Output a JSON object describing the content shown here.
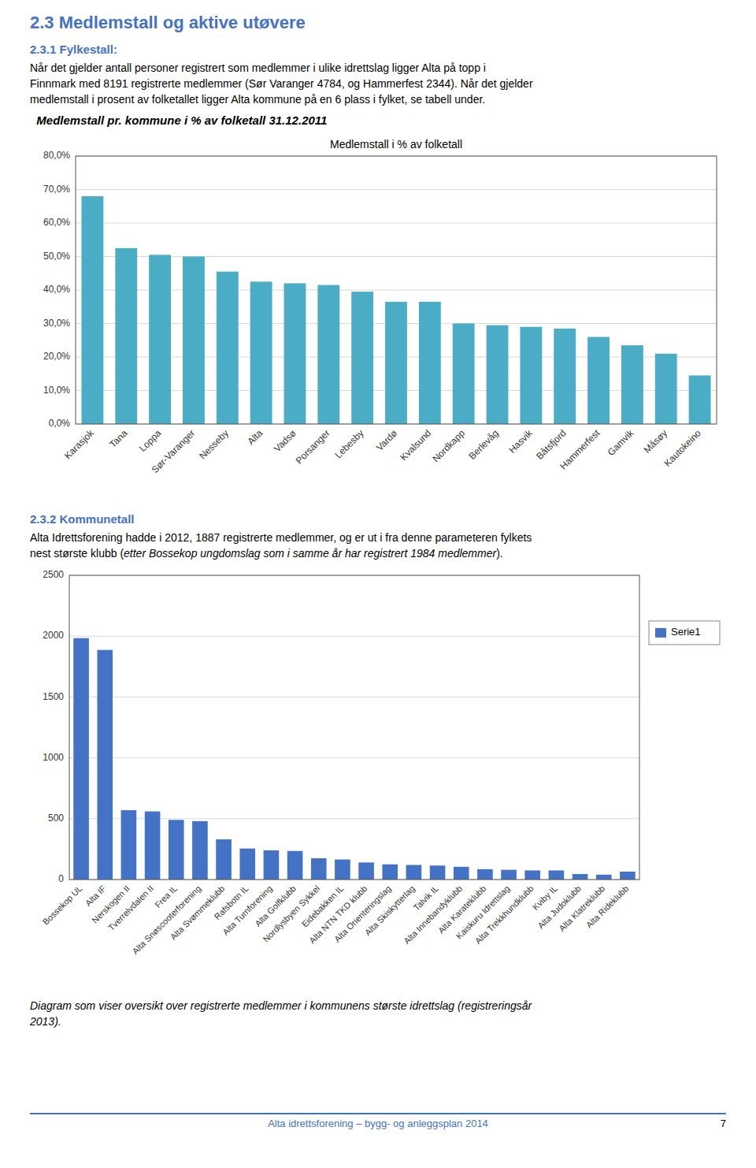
{
  "heading_color": "#4472C4",
  "title": "2.3 Medlemstall og aktive utøvere",
  "section1": {
    "heading": "2.3.1 Fylkestall:",
    "lines": [
      "Når det gjelder antall personer registrert som medlemmer i ulike idrettslag ligger Alta på topp i",
      "Finnmark med 8191 registrerte medlemmer (Sør Varanger 4784, og Hammerfest 2344).  Når det gjelder",
      "medlemstall i prosent av folketallet ligger Alta kommune på en 6 plass i fylket, se tabell under."
    ],
    "chart_heading": "  Medlemstall pr. kommune i % av folketall 31.12.2011"
  },
  "section2": {
    "heading": "2.3.2 Kommunetall",
    "line1": "Alta Idrettsforening hadde i 2012, 1887 registrerte medlemmer, og er ut i fra denne parameteren fylkets",
    "line2_parts": [
      "nest største klubb (",
      "etter Bossekop ungdomslag som i samme år har registrert 1984 medlemmer",
      ")."
    ]
  },
  "caption": [
    "Diagram som viser oversikt over registrerte medlemmer i kommunens største idrettslag (registreringsår",
    "2013)."
  ],
  "footer": "Alta idrettsforening – bygg- og anleggsplan 2014",
  "page_number": "7",
  "chart_data": [
    {
      "type": "bar",
      "title": "Medlemstall i % av folketall",
      "categories": [
        "Karasjok",
        "Tana",
        "Loppa",
        "Sør-Varanger",
        "Nesseby",
        "Alta",
        "Vadsø",
        "Porsanger",
        "Lebesby",
        "Vardø",
        "Kvalsund",
        "Nordkapp",
        "Berlevåg",
        "Hasvik",
        "Båtsfjord",
        "Hammerfest",
        "Gamvik",
        "Måsøy",
        "Kautokeino"
      ],
      "values": [
        68.0,
        52.5,
        50.5,
        50.0,
        45.5,
        42.5,
        42.0,
        41.5,
        39.5,
        36.5,
        36.5,
        30.0,
        29.5,
        29.0,
        28.5,
        26.0,
        23.5,
        21.0,
        14.5
      ],
      "color": "#4BACC6",
      "ylim": [
        0,
        80
      ],
      "yticks": [
        {
          "value": 0,
          "label": "0,0%"
        },
        {
          "value": 10,
          "label": "10,0%"
        },
        {
          "value": 20,
          "label": "20,0%"
        },
        {
          "value": 30,
          "label": "30,0%"
        },
        {
          "value": 40,
          "label": "40,0%"
        },
        {
          "value": 50,
          "label": "50,0%"
        },
        {
          "value": 60,
          "label": "60,0%"
        },
        {
          "value": 70,
          "label": "70,0%"
        },
        {
          "value": 80,
          "label": "80,0%"
        }
      ],
      "grid": true
    },
    {
      "type": "bar",
      "categories": [
        "Bossekop UL",
        "Alta IF",
        "Nerskogen II",
        "Tverrelvdalen II",
        "Frea IL",
        "Alta Snøscooterforening",
        "Alta Svømmeklubb",
        "Rafsbotn IL",
        "Alta Turnforening",
        "Alta Golfklubb",
        "Nordlysbyen Sykkel",
        "Eidebakken IL",
        "Alta NTN TKD klubb",
        "Alta Orienteringslag",
        "Alta Skiskytterlag",
        "Talvik IL",
        "Alta Innebandyklubb",
        "Alta Karateklubb",
        "Kaiskuru Idrettslag",
        "Alta Trekkhundklubb",
        "Kviby IL",
        "Alta Judoklubb",
        "Alta Klatreklubb",
        "Alta Rideklubb"
      ],
      "series": [
        {
          "name": "Serie1",
          "color": "#4472C4",
          "values": [
            1984,
            1887,
            570,
            560,
            490,
            480,
            330,
            255,
            240,
            235,
            175,
            165,
            140,
            125,
            120,
            115,
            105,
            85,
            80,
            75,
            75,
            45,
            40,
            65
          ]
        }
      ],
      "ylim": [
        0,
        2500
      ],
      "yticks": [
        0,
        500,
        1000,
        1500,
        2000,
        2500
      ],
      "grid": true,
      "legend": "right"
    }
  ]
}
